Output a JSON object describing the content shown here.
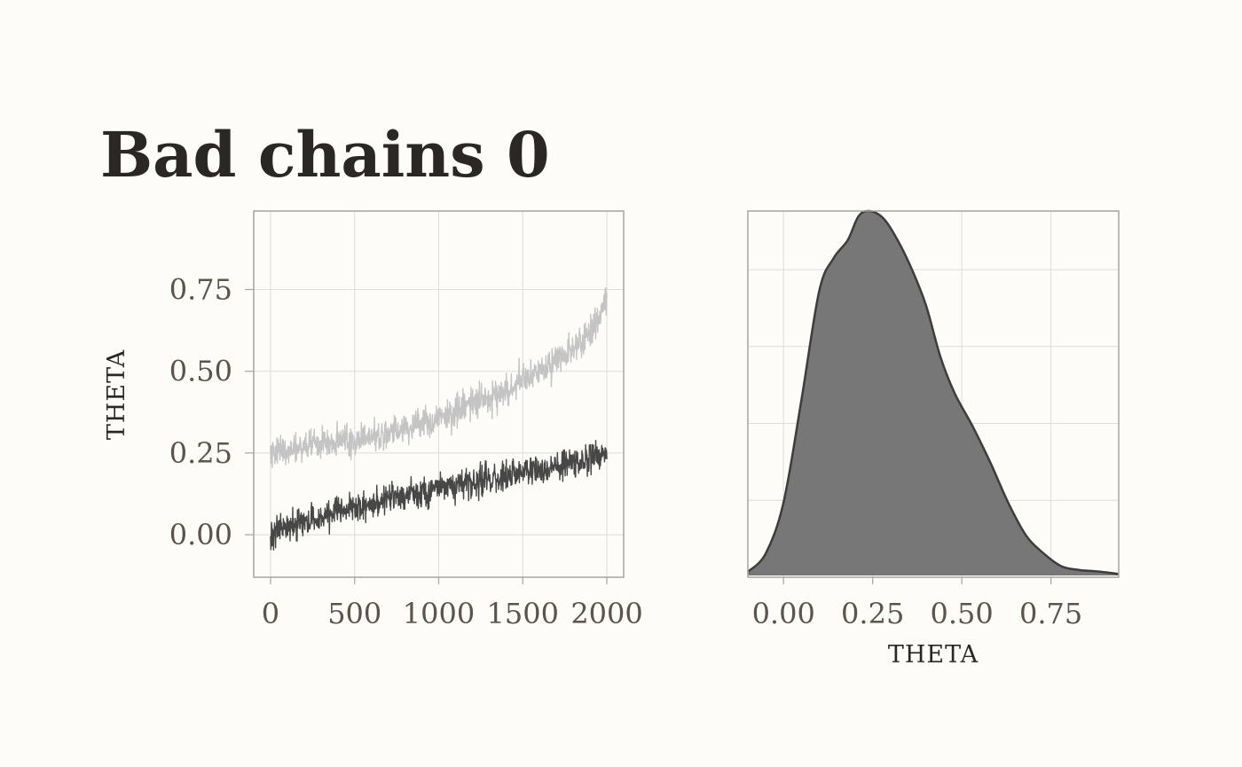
{
  "title": "Bad chains 0",
  "colors": {
    "background": "#fdfcf9",
    "grid": "#e0dcd6",
    "frame": "#a8a4a0",
    "chain_light": "#c4c4c4",
    "chain_dark": "#474745",
    "density_fill": "#777777",
    "density_line": "#3d3d3d"
  },
  "chart_data": [
    {
      "type": "line",
      "panel": "trace",
      "ylabel": "THETA",
      "xlabel": "",
      "xlim": [
        -100,
        2100
      ],
      "ylim": [
        -0.13,
        0.99
      ],
      "xticks": [
        0,
        500,
        1000,
        1500,
        2000
      ],
      "xtick_labels": [
        "0",
        "500",
        "1000",
        "1500",
        "2000"
      ],
      "yticks": [
        0.0,
        0.25,
        0.5,
        0.75
      ],
      "ytick_labels": [
        "0.00",
        "0.25",
        "0.50",
        "0.75"
      ],
      "grid": true,
      "series": [
        {
          "color": "#c4c4c4",
          "x": [
            0,
            100,
            200,
            300,
            400,
            500,
            600,
            700,
            800,
            900,
            1000,
            1100,
            1200,
            1300,
            1400,
            1500,
            1600,
            1700,
            1800,
            1900,
            1950,
            2000
          ],
          "y": [
            0.25,
            0.26,
            0.27,
            0.28,
            0.28,
            0.29,
            0.3,
            0.31,
            0.33,
            0.34,
            0.36,
            0.38,
            0.4,
            0.42,
            0.44,
            0.47,
            0.5,
            0.53,
            0.57,
            0.62,
            0.66,
            0.72
          ],
          "noise": 0.04
        },
        {
          "color": "#474745",
          "x": [
            0,
            100,
            200,
            300,
            400,
            500,
            600,
            700,
            800,
            900,
            1000,
            1100,
            1200,
            1300,
            1400,
            1500,
            1600,
            1700,
            1800,
            1900,
            2000
          ],
          "y": [
            0.0,
            0.02,
            0.04,
            0.05,
            0.07,
            0.08,
            0.09,
            0.11,
            0.12,
            0.13,
            0.14,
            0.15,
            0.16,
            0.17,
            0.18,
            0.19,
            0.2,
            0.21,
            0.22,
            0.23,
            0.25
          ],
          "noise": 0.04
        }
      ]
    },
    {
      "type": "area",
      "panel": "density",
      "xlabel": "THETA",
      "ylabel": "",
      "xlim": [
        -0.1,
        0.94
      ],
      "xticks": [
        0.0,
        0.25,
        0.5,
        0.75
      ],
      "xtick_labels": [
        "0.00",
        "0.25",
        "0.50",
        "0.75"
      ],
      "grid": true,
      "x": [
        -0.1,
        -0.05,
        0.0,
        0.05,
        0.1,
        0.14,
        0.18,
        0.21,
        0.24,
        0.28,
        0.32,
        0.36,
        0.4,
        0.44,
        0.48,
        0.53,
        0.58,
        0.63,
        0.68,
        0.73,
        0.78,
        0.83,
        0.87,
        0.91,
        0.94
      ],
      "y": [
        0.01,
        0.06,
        0.2,
        0.48,
        0.78,
        0.87,
        0.92,
        0.985,
        1.0,
        0.98,
        0.92,
        0.84,
        0.74,
        0.6,
        0.5,
        0.41,
        0.31,
        0.2,
        0.11,
        0.06,
        0.025,
        0.015,
        0.012,
        0.008,
        0.004
      ]
    }
  ]
}
